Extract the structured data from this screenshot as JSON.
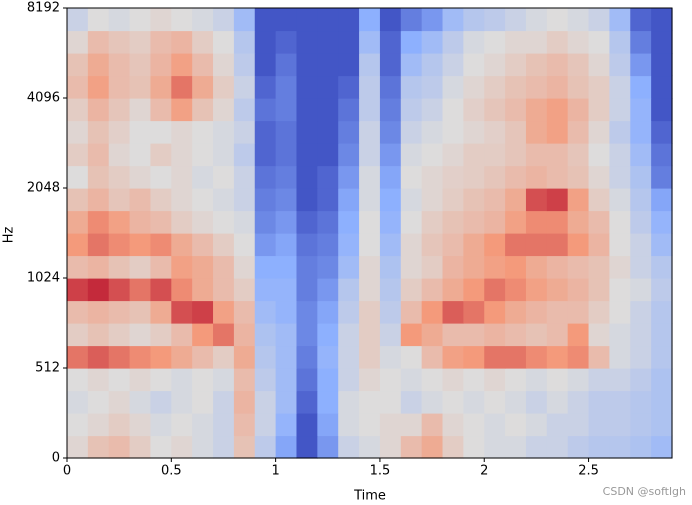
{
  "chart_data": {
    "type": "heatmap",
    "x_label": "Time",
    "y_label": "Hz",
    "annotation": "CSDN @softlgh",
    "xlim": [
      0,
      2.9
    ],
    "xticks": [
      0,
      0.5,
      1,
      1.5,
      2,
      2.5
    ],
    "ylim": [
      0,
      8192
    ],
    "yticks": [
      0,
      512,
      1024,
      2048,
      4096,
      8192
    ],
    "yscale": "symlog",
    "linthresh": 1024,
    "linscale": 2,
    "zlim": [
      -80,
      0
    ],
    "colormap": [
      "#3b4cc0",
      "#8db0fe",
      "#dddcdc",
      "#f49a7b",
      "#b40426"
    ],
    "x_edges": [
      0,
      0.1,
      0.2,
      0.3,
      0.4,
      0.5,
      0.6,
      0.7,
      0.8,
      0.9,
      1.0,
      1.1,
      1.2,
      1.3,
      1.4,
      1.5,
      1.6,
      1.7,
      1.8,
      1.9,
      2.0,
      2.1,
      2.2,
      2.3,
      2.4,
      2.5,
      2.6,
      2.7,
      2.8,
      2.9
    ],
    "y_edges": [
      0,
      128,
      256,
      384,
      512,
      640,
      768,
      896,
      1024,
      1218,
      1448,
      1722,
      2048,
      2435,
      2896,
      3444,
      4096,
      4871,
      5793,
      6889,
      8192
    ],
    "z": [
      [
        -38,
        -32,
        -30,
        -35,
        -40,
        -38,
        -42,
        -45,
        -32,
        -48,
        -62,
        -78,
        -65,
        -45,
        -42,
        -38,
        -30,
        -25,
        -35,
        -40,
        -42,
        -42,
        -45,
        -45,
        -48,
        -50,
        -50,
        -52,
        -55
      ],
      [
        -40,
        -38,
        -35,
        -38,
        -42,
        -40,
        -42,
        -45,
        -30,
        -45,
        -58,
        -78,
        -62,
        -42,
        -40,
        -38,
        -38,
        -30,
        -38,
        -40,
        -42,
        -40,
        -42,
        -45,
        -45,
        -48,
        -48,
        -50,
        -52
      ],
      [
        -42,
        -40,
        -38,
        -42,
        -45,
        -42,
        -40,
        -45,
        -28,
        -45,
        -55,
        -75,
        -60,
        -42,
        -40,
        -40,
        -45,
        -42,
        -40,
        -42,
        -40,
        -42,
        -45,
        -42,
        -45,
        -48,
        -48,
        -50,
        -52
      ],
      [
        -40,
        -38,
        -40,
        -38,
        -40,
        -42,
        -40,
        -42,
        -30,
        -48,
        -55,
        -72,
        -60,
        -45,
        -38,
        -40,
        -42,
        -40,
        -38,
        -40,
        -38,
        -40,
        -42,
        -40,
        -42,
        -45,
        -45,
        -48,
        -52
      ],
      [
        -15,
        -12,
        -15,
        -18,
        -20,
        -25,
        -30,
        -35,
        -25,
        -50,
        -55,
        -70,
        -58,
        -45,
        -35,
        -42,
        -40,
        -30,
        -22,
        -20,
        -15,
        -15,
        -18,
        -20,
        -18,
        -30,
        -42,
        -45,
        -50
      ],
      [
        -35,
        -32,
        -35,
        -38,
        -35,
        -30,
        -20,
        -15,
        -28,
        -52,
        -55,
        -68,
        -60,
        -45,
        -35,
        -45,
        -20,
        -25,
        -30,
        -30,
        -28,
        -30,
        -32,
        -30,
        -20,
        -38,
        -42,
        -45,
        -50
      ],
      [
        -30,
        -28,
        -30,
        -32,
        -25,
        -10,
        -8,
        -22,
        -30,
        -55,
        -58,
        -68,
        -62,
        -48,
        -35,
        -48,
        -30,
        -20,
        -12,
        -15,
        -20,
        -25,
        -28,
        -30,
        -30,
        -35,
        -40,
        -45,
        -50
      ],
      [
        -8,
        -5,
        -10,
        -15,
        -10,
        -18,
        -25,
        -30,
        -35,
        -58,
        -58,
        -70,
        -65,
        -50,
        -38,
        -50,
        -35,
        -30,
        -25,
        -20,
        -15,
        -18,
        -22,
        -25,
        -28,
        -32,
        -40,
        -42,
        -48
      ],
      [
        -30,
        -28,
        -32,
        -35,
        -30,
        -22,
        -25,
        -30,
        -38,
        -60,
        -60,
        -70,
        -68,
        -55,
        -38,
        -52,
        -38,
        -35,
        -28,
        -25,
        -22,
        -20,
        -25,
        -28,
        -30,
        -32,
        -38,
        -45,
        -50
      ],
      [
        -20,
        -15,
        -18,
        -20,
        -18,
        -25,
        -30,
        -35,
        -40,
        -65,
        -62,
        -72,
        -70,
        -58,
        -40,
        -55,
        -38,
        -33,
        -30,
        -25,
        -20,
        -15,
        -15,
        -15,
        -20,
        -28,
        -40,
        -45,
        -55
      ],
      [
        -25,
        -18,
        -22,
        -28,
        -30,
        -35,
        -38,
        -40,
        -42,
        -68,
        -65,
        -75,
        -72,
        -60,
        -40,
        -58,
        -40,
        -35,
        -32,
        -30,
        -28,
        -22,
        -18,
        -18,
        -25,
        -30,
        -40,
        -48,
        -58
      ],
      [
        -32,
        -28,
        -33,
        -30,
        -35,
        -38,
        -40,
        -42,
        -45,
        -70,
        -68,
        -78,
        -75,
        -62,
        -42,
        -60,
        -42,
        -38,
        -35,
        -32,
        -30,
        -25,
        -10,
        -8,
        -22,
        -35,
        -42,
        -50,
        -62
      ],
      [
        -40,
        -32,
        -35,
        -38,
        -40,
        -38,
        -42,
        -40,
        -45,
        -72,
        -70,
        -78,
        -75,
        -65,
        -42,
        -62,
        -40,
        -38,
        -36,
        -35,
        -33,
        -30,
        -28,
        -30,
        -32,
        -38,
        -45,
        -52,
        -70
      ],
      [
        -35,
        -30,
        -38,
        -40,
        -35,
        -38,
        -40,
        -42,
        -48,
        -75,
        -72,
        -78,
        -78,
        -68,
        -45,
        -65,
        -42,
        -40,
        -38,
        -35,
        -35,
        -33,
        -30,
        -30,
        -33,
        -40,
        -45,
        -55,
        -72
      ],
      [
        -38,
        -32,
        -36,
        -40,
        -40,
        -38,
        -40,
        -42,
        -45,
        -75,
        -72,
        -78,
        -78,
        -70,
        -45,
        -68,
        -45,
        -42,
        -40,
        -38,
        -36,
        -33,
        -25,
        -22,
        -30,
        -38,
        -48,
        -58,
        -75
      ],
      [
        -35,
        -28,
        -33,
        -38,
        -30,
        -22,
        -32,
        -38,
        -48,
        -72,
        -70,
        -78,
        -78,
        -72,
        -48,
        -70,
        -48,
        -45,
        -40,
        -36,
        -33,
        -30,
        -25,
        -22,
        -28,
        -35,
        -45,
        -58,
        -78
      ],
      [
        -30,
        -22,
        -30,
        -32,
        -25,
        -15,
        -25,
        -35,
        -45,
        -75,
        -70,
        -78,
        -78,
        -75,
        -48,
        -72,
        -50,
        -48,
        -42,
        -38,
        -35,
        -32,
        -30,
        -28,
        -32,
        -35,
        -45,
        -60,
        -78
      ],
      [
        -32,
        -25,
        -30,
        -33,
        -28,
        -22,
        -30,
        -38,
        -48,
        -78,
        -72,
        -78,
        -78,
        -78,
        -50,
        -75,
        -55,
        -50,
        -45,
        -40,
        -38,
        -35,
        -32,
        -30,
        -33,
        -38,
        -48,
        -65,
        -78
      ],
      [
        -38,
        -30,
        -33,
        -35,
        -30,
        -28,
        -35,
        -40,
        -50,
        -78,
        -75,
        -78,
        -78,
        -78,
        -55,
        -75,
        -60,
        -55,
        -48,
        -42,
        -40,
        -38,
        -38,
        -35,
        -38,
        -40,
        -50,
        -70,
        -78
      ],
      [
        -45,
        -40,
        -42,
        -40,
        -38,
        -40,
        -42,
        -45,
        -55,
        -78,
        -78,
        -78,
        -78,
        -78,
        -60,
        -78,
        -70,
        -65,
        -55,
        -50,
        -48,
        -45,
        -42,
        -40,
        -42,
        -45,
        -55,
        -75,
        -78
      ]
    ]
  }
}
